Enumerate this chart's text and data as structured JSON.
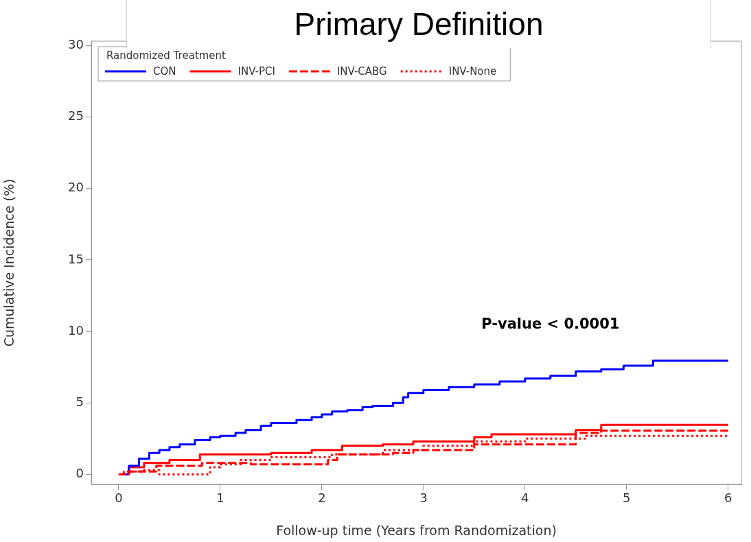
{
  "chart_data": {
    "type": "step",
    "title": "Primary Definition",
    "xlabel": "Follow-up time (Years from Randomization)",
    "ylabel": "Cumulative Incidence (%)",
    "legend_title": "Randomized Treatment",
    "legend": "top left",
    "annotations": [
      "P-value < 0.0001"
    ],
    "xlim": [
      -0.27,
      6.13
    ],
    "ylim": [
      -0.7,
      30.3
    ],
    "xticks": [
      0,
      1,
      2,
      3,
      4,
      5,
      6
    ],
    "yticks": [
      0,
      5,
      10,
      15,
      20,
      25,
      30
    ],
    "series": [
      {
        "name": "CON",
        "color": "#0000ff",
        "line_style": "solid",
        "x": [
          0,
          0.1,
          0.2,
          0.3,
          0.4,
          0.5,
          0.6,
          0.75,
          0.9,
          1.0,
          1.15,
          1.25,
          1.4,
          1.5,
          1.75,
          1.9,
          2.0,
          2.1,
          2.25,
          2.4,
          2.5,
          2.7,
          2.8,
          2.85,
          3.0,
          3.25,
          3.5,
          3.75,
          4.0,
          4.25,
          4.5,
          4.75,
          4.97,
          5.26,
          6.0
        ],
        "values": [
          0,
          0.6,
          1.1,
          1.5,
          1.7,
          1.9,
          2.1,
          2.4,
          2.6,
          2.7,
          2.9,
          3.1,
          3.4,
          3.6,
          3.8,
          4.0,
          4.2,
          4.4,
          4.5,
          4.7,
          4.8,
          5.0,
          5.4,
          5.7,
          5.9,
          6.1,
          6.3,
          6.5,
          6.7,
          6.9,
          7.2,
          7.35,
          7.6,
          7.95,
          7.95
        ]
      },
      {
        "name": "INV-PCI",
        "color": "#ff0000",
        "line_style": "solid",
        "x": [
          0,
          0.1,
          0.25,
          0.5,
          0.8,
          1.5,
          1.9,
          2.2,
          2.6,
          2.9,
          3.5,
          3.67,
          4.5,
          4.75,
          6.0
        ],
        "values": [
          0,
          0.5,
          0.8,
          1.0,
          1.4,
          1.5,
          1.7,
          2.0,
          2.1,
          2.3,
          2.6,
          2.8,
          3.1,
          3.46,
          3.46
        ]
      },
      {
        "name": "INV-CABG",
        "color": "#ff0000",
        "line_style": "dashed",
        "x": [
          0,
          0.05,
          0.37,
          0.82,
          1.3,
          2.06,
          2.15,
          2.7,
          2.9,
          3.5,
          4.5,
          4.75,
          6.0
        ],
        "values": [
          0,
          0.2,
          0.6,
          0.8,
          0.7,
          1.0,
          1.4,
          1.5,
          1.7,
          2.1,
          2.9,
          3.05,
          3.05
        ]
      },
      {
        "name": "INV-None",
        "color": "#ff0000",
        "line_style": "dotted",
        "x": [
          0,
          0.1,
          0.25,
          0.4,
          0.9,
          1.0,
          1.2,
          1.5,
          2.1,
          2.6,
          3.0,
          3.5,
          4.0,
          4.6,
          6.0
        ],
        "values": [
          0,
          0.2,
          0.3,
          0.0,
          0.5,
          0.7,
          1.0,
          1.2,
          1.4,
          1.7,
          2.0,
          2.3,
          2.5,
          2.7,
          2.7
        ]
      }
    ]
  }
}
